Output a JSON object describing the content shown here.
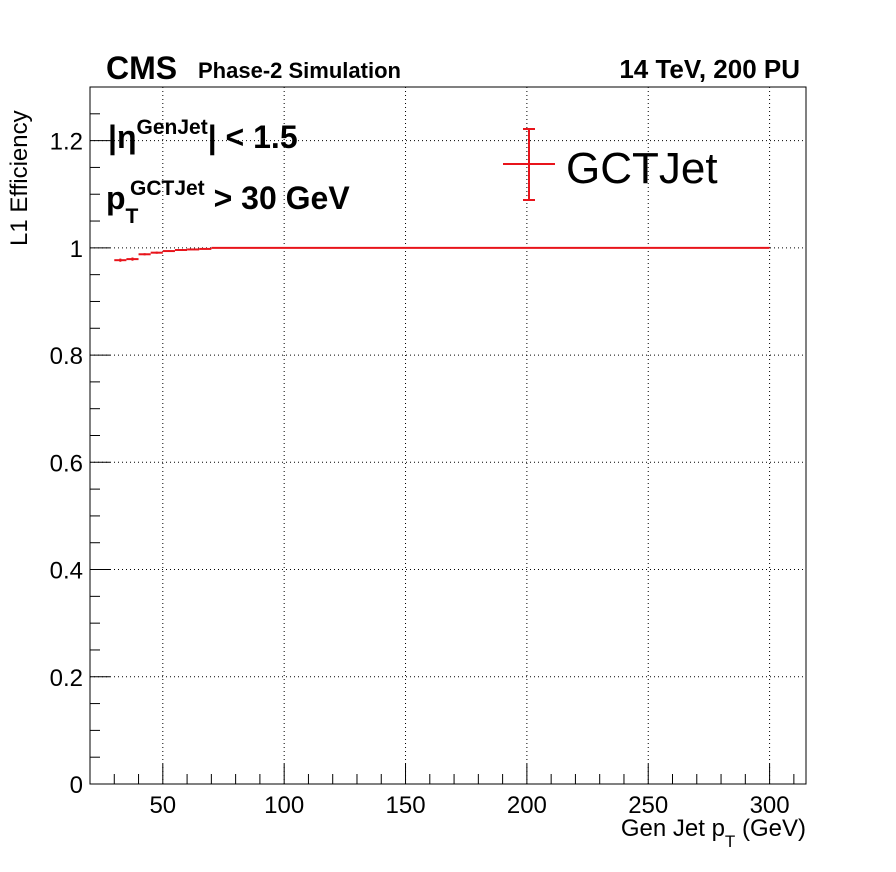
{
  "chart_data": {
    "type": "line",
    "experiment_label": "CMS",
    "status_label": "Phase-2 Simulation",
    "energy_label": "14 TeV, 200 PU",
    "cut_eta": {
      "prefix": "|η",
      "superscript": "GenJet",
      "suffix": "| < 1.5"
    },
    "cut_pt": {
      "base": "p",
      "subscript": "T",
      "superscript": "GCTJet",
      "suffix": " > 30 GeV"
    },
    "ylabel": "L1 Efficiency",
    "xlabel": {
      "main": "Gen Jet p",
      "subscript": "T",
      "unit": " (GeV)"
    },
    "xlim": [
      20,
      315
    ],
    "ylim": [
      0,
      1.3
    ],
    "x_major_ticks": [
      50,
      100,
      150,
      200,
      250,
      300
    ],
    "x_tick_labels": [
      "50",
      "100",
      "150",
      "200",
      "250",
      "300"
    ],
    "y_major_ticks": [
      0,
      0.2,
      0.4,
      0.6,
      0.8,
      1.0,
      1.2
    ],
    "y_tick_labels": [
      "0",
      "0.2",
      "0.4",
      "0.6",
      "0.8",
      "1",
      "1.2"
    ],
    "grid": true,
    "legend_position": "top-right",
    "series": [
      {
        "name": "GCTJet",
        "color": "#e8141b",
        "points": [
          {
            "xlow": 30,
            "xhigh": 35,
            "y": 0.977,
            "err": 0.003
          },
          {
            "xlow": 35,
            "xhigh": 40,
            "y": 0.979,
            "err": 0.003
          },
          {
            "xlow": 40,
            "xhigh": 45,
            "y": 0.988,
            "err": 0.002
          },
          {
            "xlow": 45,
            "xhigh": 50,
            "y": 0.991,
            "err": 0.002
          },
          {
            "xlow": 50,
            "xhigh": 55,
            "y": 0.994,
            "err": 0.0015
          },
          {
            "xlow": 55,
            "xhigh": 60,
            "y": 0.996,
            "err": 0.001
          },
          {
            "xlow": 60,
            "xhigh": 65,
            "y": 0.997,
            "err": 0.001
          },
          {
            "xlow": 65,
            "xhigh": 70,
            "y": 0.998,
            "err": 0.001
          },
          {
            "xlow": 70,
            "xhigh": 300,
            "y": 1.0,
            "err": 0.0
          }
        ]
      }
    ]
  }
}
